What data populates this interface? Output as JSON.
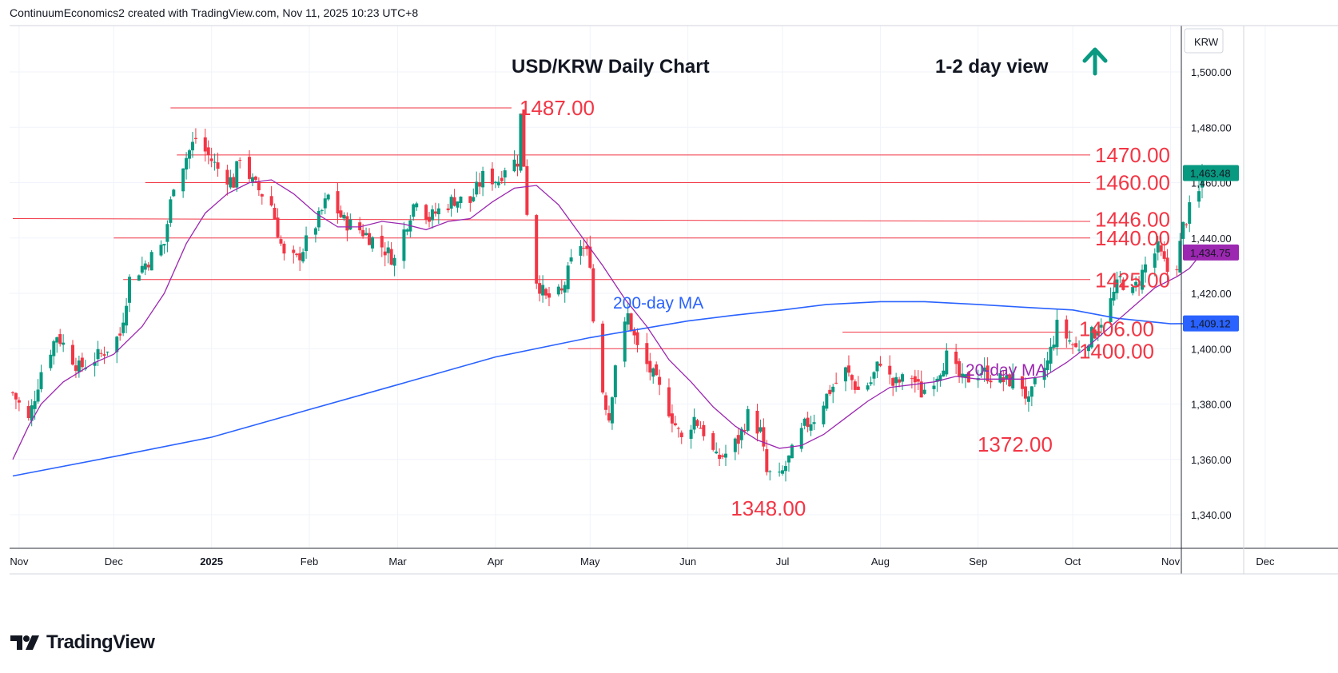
{
  "header": {
    "attribution": "ContinuumEconomics2 created with TradingView.com, Nov 11, 2025 10:23 UTC+8"
  },
  "brand": {
    "name": "TradingView"
  },
  "colors": {
    "up": "#089981",
    "down": "#f23645",
    "ma20": "#9c27b0",
    "ma200": "#2962ff",
    "level": "#f23645",
    "arrow": "#089981"
  },
  "chart_data": {
    "type": "candlestick",
    "title": "USD/KRW Daily Chart",
    "subtitle": "1-2 day view",
    "view_arrow": "up-arrow-icon",
    "currency": "KRW",
    "y_ticks": [
      "1,500.00",
      "1,480.00",
      "1,460.00",
      "1,440.00",
      "1,420.00",
      "1,400.00",
      "1,380.00",
      "1,360.00",
      "1,340.00"
    ],
    "y_tick_values": [
      1500,
      1480,
      1460,
      1440,
      1420,
      1400,
      1380,
      1360,
      1340
    ],
    "ylim": [
      1325,
      1513
    ],
    "x_ticks": [
      "Nov",
      "Dec",
      "2025",
      "Feb",
      "Mar",
      "Apr",
      "May",
      "Jun",
      "Jul",
      "Aug",
      "Sep",
      "Oct",
      "Nov",
      "Dec"
    ],
    "x_tick_dates": [
      "2024-11-01",
      "2024-12-01",
      "2025-01-01",
      "2025-02-01",
      "2025-03-01",
      "2025-04-01",
      "2025-05-01",
      "2025-06-01",
      "2025-07-01",
      "2025-08-01",
      "2025-09-01",
      "2025-10-01",
      "2025-11-01",
      "2025-12-01"
    ],
    "price_badges": [
      {
        "label": "1,463.48",
        "value": 1463.48,
        "color": "#089981"
      },
      {
        "label": "1,434.75",
        "value": 1434.75,
        "color": "#9c27b0"
      },
      {
        "label": "1,409.12",
        "value": 1409.12,
        "color": "#2962ff"
      }
    ],
    "levels": [
      {
        "label": "1487.00",
        "value": 1487,
        "from_date": "2024-12-19"
      },
      {
        "label": "1470.00",
        "value": 1470,
        "from_date": "2024-12-21"
      },
      {
        "label": "1460.00",
        "value": 1460,
        "from_date": "2024-12-11"
      },
      {
        "label": "1446.00",
        "value": 1447,
        "from_date": "2024-10-30",
        "to_value": 1446
      },
      {
        "label": "1440.00",
        "value": 1440,
        "from_date": "2024-12-01"
      },
      {
        "label": "1425.00",
        "value": 1425,
        "from_date": "2024-12-04"
      },
      {
        "label": "1406.00",
        "value": 1406,
        "from_date": "2025-07-20"
      },
      {
        "label": "1400.00",
        "value": 1400,
        "from_date": "2025-04-24"
      }
    ],
    "extreme_labels": [
      {
        "label": "1348.00",
        "value": 1348,
        "date": "2025-06-26"
      },
      {
        "label": "1372.00",
        "value": 1372,
        "date": "2025-09-16"
      }
    ],
    "ma_labels": [
      {
        "label": "200-day MA",
        "series": "ma200"
      },
      {
        "label": "20-day MA",
        "series": "ma20"
      }
    ],
    "price_path": [
      [
        "2024-10-30",
        1384
      ],
      [
        "2024-11-04",
        1374
      ],
      [
        "2024-11-08",
        1392
      ],
      [
        "2024-11-13",
        1405
      ],
      [
        "2024-11-20",
        1393
      ],
      [
        "2024-11-27",
        1398
      ],
      [
        "2024-12-03",
        1405
      ],
      [
        "2024-12-06",
        1425
      ],
      [
        "2024-12-12",
        1432
      ],
      [
        "2024-12-17",
        1438
      ],
      [
        "2024-12-20",
        1460
      ],
      [
        "2024-12-23",
        1467
      ],
      [
        "2024-12-27",
        1476
      ],
      [
        "2025-01-03",
        1465
      ],
      [
        "2025-01-08",
        1460
      ],
      [
        "2025-01-10",
        1470
      ],
      [
        "2025-01-14",
        1460
      ],
      [
        "2025-01-20",
        1452
      ],
      [
        "2025-01-24",
        1433
      ],
      [
        "2025-01-28",
        1432
      ],
      [
        "2025-02-04",
        1447
      ],
      [
        "2025-02-07",
        1455
      ],
      [
        "2025-02-12",
        1446
      ],
      [
        "2025-02-17",
        1443
      ],
      [
        "2025-02-24",
        1437
      ],
      [
        "2025-02-28",
        1432
      ],
      [
        "2025-03-04",
        1446
      ],
      [
        "2025-03-07",
        1455
      ],
      [
        "2025-03-11",
        1447
      ],
      [
        "2025-03-14",
        1450
      ],
      [
        "2025-03-19",
        1454
      ],
      [
        "2025-03-24",
        1453
      ],
      [
        "2025-03-28",
        1462
      ],
      [
        "2025-04-02",
        1461
      ],
      [
        "2025-04-04",
        1466
      ],
      [
        "2025-04-08",
        1468
      ],
      [
        "2025-04-09",
        1484
      ],
      [
        "2025-04-11",
        1450
      ],
      [
        "2025-04-14",
        1425
      ],
      [
        "2025-04-17",
        1418
      ],
      [
        "2025-04-22",
        1420
      ],
      [
        "2025-04-25",
        1431
      ],
      [
        "2025-04-28",
        1438
      ],
      [
        "2025-05-01",
        1432
      ],
      [
        "2025-05-02",
        1410
      ],
      [
        "2025-05-05",
        1385
      ],
      [
        "2025-05-07",
        1375
      ],
      [
        "2025-05-09",
        1395
      ],
      [
        "2025-05-13",
        1412
      ],
      [
        "2025-05-16",
        1400
      ],
      [
        "2025-05-21",
        1390
      ],
      [
        "2025-05-26",
        1378
      ],
      [
        "2025-05-30",
        1367
      ],
      [
        "2025-06-03",
        1375
      ],
      [
        "2025-06-06",
        1370
      ],
      [
        "2025-06-10",
        1360
      ],
      [
        "2025-06-13",
        1362
      ],
      [
        "2025-06-17",
        1367
      ],
      [
        "2025-06-20",
        1376
      ],
      [
        "2025-06-24",
        1370
      ],
      [
        "2025-06-26",
        1355
      ],
      [
        "2025-06-30",
        1353
      ],
      [
        "2025-07-03",
        1360
      ],
      [
        "2025-07-08",
        1372
      ],
      [
        "2025-07-11",
        1375
      ],
      [
        "2025-07-16",
        1385
      ],
      [
        "2025-07-21",
        1392
      ],
      [
        "2025-07-25",
        1385
      ],
      [
        "2025-07-29",
        1388
      ],
      [
        "2025-08-01",
        1396
      ],
      [
        "2025-08-05",
        1387
      ],
      [
        "2025-08-11",
        1390
      ],
      [
        "2025-08-14",
        1384
      ],
      [
        "2025-08-19",
        1391
      ],
      [
        "2025-08-22",
        1397
      ],
      [
        "2025-08-27",
        1388
      ],
      [
        "2025-09-02",
        1392
      ],
      [
        "2025-09-05",
        1390
      ],
      [
        "2025-09-10",
        1388
      ],
      [
        "2025-09-14",
        1390
      ],
      [
        "2025-09-17",
        1380
      ],
      [
        "2025-09-19",
        1387
      ],
      [
        "2025-09-23",
        1395
      ],
      [
        "2025-09-26",
        1408
      ],
      [
        "2025-09-30",
        1403
      ],
      [
        "2025-10-02",
        1400
      ],
      [
        "2025-10-08",
        1406
      ],
      [
        "2025-10-13",
        1417
      ],
      [
        "2025-10-16",
        1425
      ],
      [
        "2025-10-20",
        1420
      ],
      [
        "2025-10-24",
        1430
      ],
      [
        "2025-10-28",
        1436
      ],
      [
        "2025-10-31",
        1428
      ],
      [
        "2025-11-03",
        1431
      ],
      [
        "2025-11-05",
        1444
      ],
      [
        "2025-11-07",
        1450
      ],
      [
        "2025-11-10",
        1456
      ],
      [
        "2025-11-11",
        1463.48
      ]
    ],
    "ma20_path": [
      [
        "2024-10-30",
        1360
      ],
      [
        "2024-11-04",
        1372
      ],
      [
        "2024-11-08",
        1380
      ],
      [
        "2024-11-15",
        1388
      ],
      [
        "2024-11-25",
        1395
      ],
      [
        "2024-12-01",
        1398
      ],
      [
        "2024-12-10",
        1408
      ],
      [
        "2024-12-17",
        1420
      ],
      [
        "2024-12-24",
        1438
      ],
      [
        "2024-12-30",
        1449
      ],
      [
        "2025-01-06",
        1456
      ],
      [
        "2025-01-13",
        1460
      ],
      [
        "2025-01-20",
        1461
      ],
      [
        "2025-01-27",
        1456
      ],
      [
        "2025-02-03",
        1449
      ],
      [
        "2025-02-10",
        1444
      ],
      [
        "2025-02-17",
        1444
      ],
      [
        "2025-02-24",
        1446
      ],
      [
        "2025-03-03",
        1445
      ],
      [
        "2025-03-10",
        1443
      ],
      [
        "2025-03-17",
        1446
      ],
      [
        "2025-03-24",
        1447
      ],
      [
        "2025-03-31",
        1453
      ],
      [
        "2025-04-07",
        1458
      ],
      [
        "2025-04-14",
        1459
      ],
      [
        "2025-04-21",
        1452
      ],
      [
        "2025-04-28",
        1441
      ],
      [
        "2025-05-05",
        1430
      ],
      [
        "2025-05-12",
        1418
      ],
      [
        "2025-05-19",
        1408
      ],
      [
        "2025-05-26",
        1396
      ],
      [
        "2025-06-02",
        1388
      ],
      [
        "2025-06-09",
        1379
      ],
      [
        "2025-06-16",
        1372
      ],
      [
        "2025-06-23",
        1367
      ],
      [
        "2025-06-30",
        1364
      ],
      [
        "2025-07-07",
        1365
      ],
      [
        "2025-07-14",
        1369
      ],
      [
        "2025-07-21",
        1375
      ],
      [
        "2025-07-28",
        1381
      ],
      [
        "2025-08-04",
        1386
      ],
      [
        "2025-08-11",
        1387
      ],
      [
        "2025-08-18",
        1388
      ],
      [
        "2025-08-25",
        1390
      ],
      [
        "2025-09-01",
        1389
      ],
      [
        "2025-09-08",
        1389
      ],
      [
        "2025-09-15",
        1389
      ],
      [
        "2025-09-22",
        1390
      ],
      [
        "2025-09-29",
        1395
      ],
      [
        "2025-10-06",
        1401
      ],
      [
        "2025-10-13",
        1408
      ],
      [
        "2025-10-20",
        1415
      ],
      [
        "2025-10-27",
        1422
      ],
      [
        "2025-11-03",
        1426
      ],
      [
        "2025-11-07",
        1429
      ],
      [
        "2025-11-11",
        1434.75
      ]
    ],
    "ma200_path": [
      [
        "2024-10-30",
        1354
      ],
      [
        "2024-12-01",
        1361
      ],
      [
        "2025-01-01",
        1368
      ],
      [
        "2025-02-01",
        1378
      ],
      [
        "2025-03-01",
        1387
      ],
      [
        "2025-04-01",
        1397
      ],
      [
        "2025-05-01",
        1404
      ],
      [
        "2025-06-01",
        1410
      ],
      [
        "2025-06-15",
        1412
      ],
      [
        "2025-07-01",
        1414
      ],
      [
        "2025-07-15",
        1416
      ],
      [
        "2025-08-01",
        1417
      ],
      [
        "2025-08-15",
        1417
      ],
      [
        "2025-09-01",
        1416
      ],
      [
        "2025-09-15",
        1415
      ],
      [
        "2025-10-01",
        1414
      ],
      [
        "2025-10-15",
        1411
      ],
      [
        "2025-11-01",
        1409
      ],
      [
        "2025-11-11",
        1409.12
      ]
    ]
  }
}
